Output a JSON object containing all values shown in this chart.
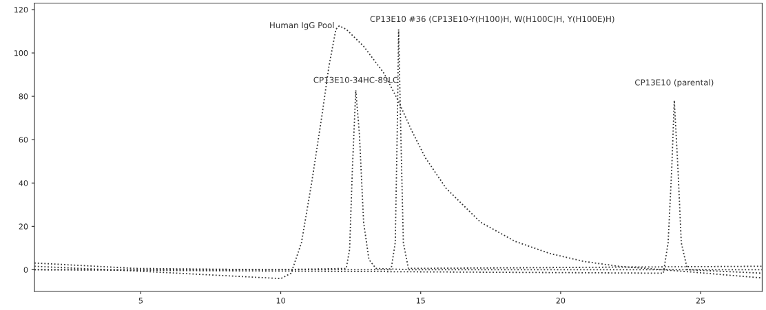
{
  "chart_data": {
    "type": "line",
    "line_style": "dotted",
    "marker": "none",
    "grid": false,
    "xlim": [
      1.2,
      27.2
    ],
    "xticks": [
      5,
      10,
      15,
      20,
      25
    ],
    "ylim": [
      -10,
      123
    ],
    "yticks": [
      0,
      20,
      40,
      60,
      80,
      100,
      120
    ],
    "series": [
      {
        "color": "#333333",
        "x": [
          1.2,
          4.83,
          8.52,
          10.0,
          10.37,
          10.74,
          11.11,
          11.48,
          11.72,
          11.97,
          12.09,
          12.34,
          12.96,
          13.69,
          14.19,
          14.68,
          15.17,
          15.91,
          17.14,
          18.37,
          19.61,
          20.84,
          22.07,
          24.53,
          27.2
        ],
        "values": [
          1.6,
          -0.6,
          -3.1,
          -4.1,
          -1.6,
          12.5,
          40.6,
          71.9,
          93.8,
          110.9,
          112.5,
          110.9,
          103.1,
          90.6,
          78.1,
          64.1,
          51.6,
          37.5,
          21.9,
          13.1,
          7.5,
          3.8,
          1.6,
          -0.9,
          -3.8
        ]
      },
      {
        "color": "#333333",
        "x": [
          1.2,
          4.83,
          9.75,
          12.34,
          12.46,
          12.56,
          12.68,
          12.81,
          12.96,
          13.15,
          13.4,
          14.68,
          27.2
        ],
        "values": [
          3.1,
          0.6,
          0.0,
          0.6,
          9.4,
          46.9,
          82.8,
          62.5,
          21.9,
          4.7,
          0.6,
          0.0,
          0.0
        ]
      },
      {
        "color": "#333333",
        "x": [
          1.2,
          13.94,
          14.09,
          14.16,
          14.21,
          14.29,
          14.38,
          14.56,
          27.2
        ],
        "values": [
          0.0,
          0.0,
          12.5,
          62.5,
          110.9,
          62.5,
          12.5,
          0.6,
          1.6
        ]
      },
      {
        "color": "#333333",
        "x": [
          1.2,
          23.67,
          23.84,
          23.97,
          24.06,
          24.19,
          24.31,
          24.53,
          27.2
        ],
        "values": [
          0.0,
          -1.6,
          12.5,
          46.9,
          78.1,
          46.9,
          12.5,
          0.0,
          -1.6
        ]
      }
    ],
    "annotations": [
      {
        "text": "Human IgG Pool",
        "x": 12.09,
        "y": 112.5
      },
      {
        "text": "CP13E10-34HC-89LC",
        "x": 12.68,
        "y": 82.8
      },
      {
        "text": "CP13E10 #36 (CP13E10-Y(H100)H, W(H100C)H, Y(H100E)H)",
        "x": 14.21,
        "y": 110.9
      },
      {
        "text": "CP13E10 (parental)",
        "x": 24.06,
        "y": 78.1
      }
    ]
  }
}
